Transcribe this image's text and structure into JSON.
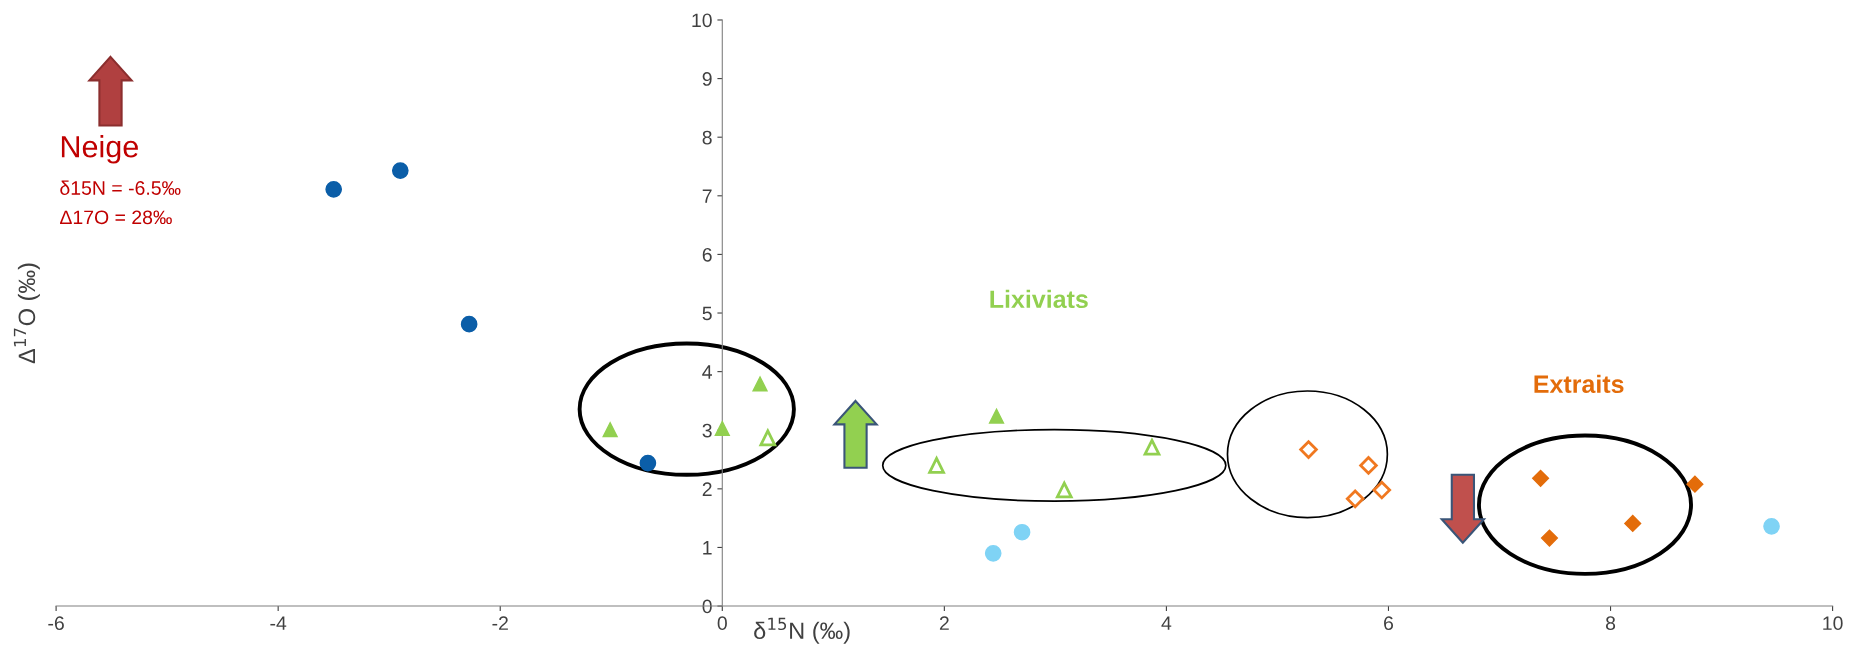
{
  "chart_data": {
    "type": "scatter",
    "xlabel": "δ$^{15}$N (‰)",
    "ylabel": "Δ$^{17}$O (‰)",
    "xlim": [
      -6,
      10
    ],
    "ylim": [
      0,
      10
    ],
    "xticks": [
      -6,
      -4,
      -2,
      0,
      2,
      4,
      6,
      8,
      10
    ],
    "yticks": [
      0,
      1,
      2,
      3,
      4,
      5,
      6,
      7,
      8,
      9,
      10
    ],
    "grid": false,
    "legend": false,
    "annotations": [
      "Neige",
      "δ15N = -6.5‰",
      "Δ17O = 28‰",
      "Lixiviats",
      "Extraits"
    ],
    "series": [
      {
        "color": "#0b5ea8",
        "marker": "circle",
        "x": [
          -3.5,
          -2.9,
          -2.28,
          -0.67
        ],
        "values": [
          7.11,
          7.43,
          4.81,
          2.44
        ]
      },
      {
        "color": "#7fd3f5",
        "marker": "circle",
        "x": [
          2.44,
          2.7,
          9.45
        ],
        "values": [
          0.9,
          1.26,
          1.36
        ]
      },
      {
        "color": "#92d050",
        "marker": "triangle",
        "x": [
          -1.01,
          0.0,
          0.34,
          2.47
        ],
        "values": [
          3.01,
          3.03,
          3.79,
          3.24
        ]
      },
      {
        "color": "#92d050",
        "marker": "triangle",
        "x": [
          0.41,
          1.93,
          3.08,
          3.87
        ],
        "values": [
          2.87,
          2.4,
          1.98,
          2.71
        ]
      },
      {
        "color": "#f07820",
        "marker": "diamond",
        "x": [
          5.28,
          5.82,
          5.7,
          5.94
        ],
        "values": [
          2.67,
          2.4,
          1.83,
          1.98
        ]
      },
      {
        "color": "#e36c0a",
        "marker": "diamond",
        "x": [
          7.37,
          7.45,
          8.2,
          8.76
        ],
        "values": [
          2.18,
          1.16,
          1.41,
          2.08
        ]
      }
    ]
  }
}
